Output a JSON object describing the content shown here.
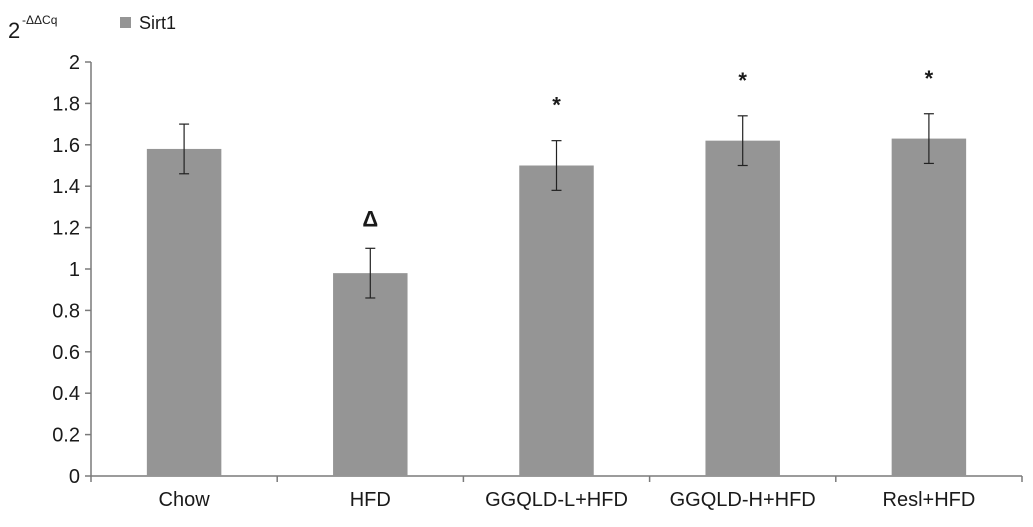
{
  "chart_data": {
    "type": "bar",
    "ylabel_base": "2",
    "ylabel_sup": "-ΔΔCq",
    "xlabel": "",
    "categories": [
      "Chow",
      "HFD",
      "GGQLD-L+HFD",
      "GGQLD-H+HFD",
      "Resl+HFD"
    ],
    "series": [
      {
        "name": "Sirt1",
        "values": [
          1.58,
          0.98,
          1.5,
          1.62,
          1.63
        ],
        "errors": [
          0.12,
          0.12,
          0.12,
          0.12,
          0.12
        ],
        "color": "#959595"
      }
    ],
    "annotations": [
      "",
      "Δ",
      "*",
      "*",
      "*"
    ],
    "ylim": [
      0,
      2
    ],
    "yticks": [
      0,
      0.2,
      0.4,
      0.6,
      0.8,
      1,
      1.2,
      1.4,
      1.6,
      1.8,
      2
    ],
    "ytick_labels": [
      "0",
      "0.2",
      "0.4",
      "0.6",
      "0.8",
      "1",
      "1.2",
      "1.4",
      "1.6",
      "1.8",
      "2"
    ],
    "grid": false,
    "legend_position": "top-left"
  }
}
